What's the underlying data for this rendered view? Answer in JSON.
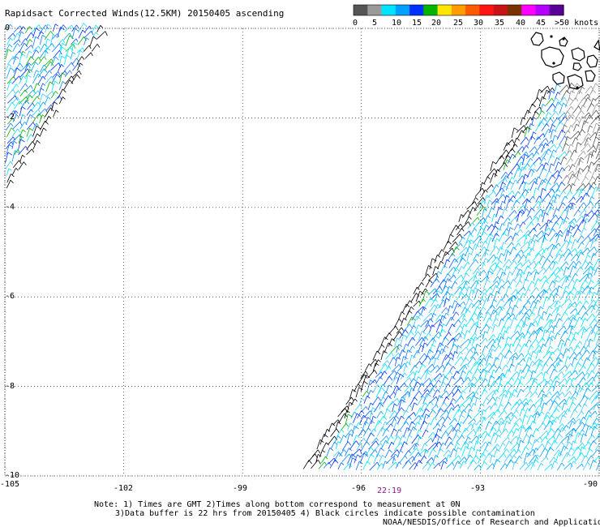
{
  "title": "Rapidsact Corrected Winds(12.5KM) 20150405 ascending",
  "legend": {
    "colors": [
      "#555555",
      "#9a9a9a",
      "#00e5ff",
      "#00a0ff",
      "#0030ff",
      "#00b400",
      "#ffe600",
      "#ff9c00",
      "#ff5a00",
      "#ff1414",
      "#c81414",
      "#7a3200",
      "#ff00ff",
      "#b400ff",
      "#5a0096"
    ],
    "labels": [
      "0",
      "5",
      "10",
      "15",
      "20",
      "25",
      "30",
      "35",
      "40",
      "45",
      ">50 knots"
    ]
  },
  "map": {
    "lon_ticks": [
      "-105",
      "-102",
      "-99",
      "-96",
      "-93",
      "-90"
    ],
    "lat_ticks": [
      "0",
      "-2",
      "-4",
      "-6",
      "-8",
      "-10"
    ],
    "lon_range": [
      -105,
      -90
    ],
    "lat_range": [
      -10,
      0
    ],
    "grid": "dotted"
  },
  "swath_time": "22:19",
  "notes": {
    "line1": "Note: 1) Times are GMT 2)Times along bottom correspond to measurement at 0N",
    "line2": "3)Data buffer is 22 hrs from 20150405 4) Black circles indicate possible contamination",
    "credit": "NOAA/NESDIS/Office of Research and Applications"
  }
}
